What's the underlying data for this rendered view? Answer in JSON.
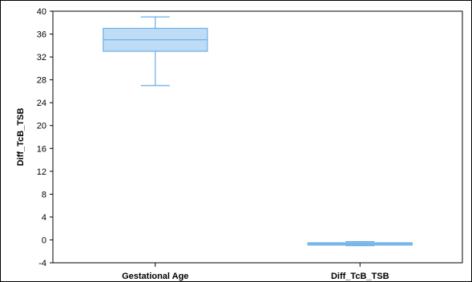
{
  "chart_data": {
    "type": "box",
    "ylabel": "Diff_TcB_TSB",
    "xlabel": "",
    "ylim": [
      -4,
      40
    ],
    "yticks": [
      40,
      36,
      32,
      28,
      24,
      20,
      16,
      12,
      8,
      4,
      0,
      -4
    ],
    "categories": [
      "Gestational Age",
      "Diff_TcB_TSB"
    ],
    "boxes": [
      {
        "category": "Gestational Age",
        "min": 27,
        "q1": 33,
        "median": 35,
        "q3": 37,
        "max": 39
      },
      {
        "category": "Diff_TcB_TSB",
        "min": -1,
        "q1": -0.9,
        "median": -0.7,
        "q3": -0.5,
        "max": -0.3
      }
    ],
    "grid": false,
    "colors": {
      "box_fill": "#bfdcf6",
      "box_stroke": "#6aaee8",
      "axis": "#000000"
    }
  }
}
